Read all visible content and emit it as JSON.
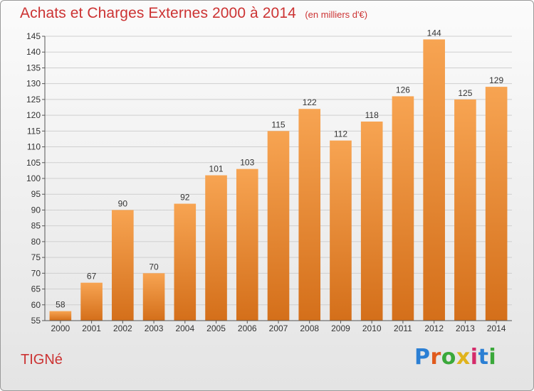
{
  "header": {
    "title": "Achats et Charges Externes 2000 à 2014",
    "subtitle": "(en milliers d'€)"
  },
  "footer": {
    "commune": "TIGNé",
    "logo_text": "Proxiti"
  },
  "colors": {
    "title": "#cc3333",
    "bar_top": "#f7a452",
    "bar_bottom": "#d46f1a",
    "grid": "#cfcfcf"
  },
  "chart_data": {
    "type": "bar",
    "title": "Achats et Charges Externes 2000 à 2014",
    "xlabel": "",
    "ylabel": "",
    "categories": [
      "2000",
      "2001",
      "2002",
      "2003",
      "2004",
      "2005",
      "2006",
      "2007",
      "2008",
      "2009",
      "2010",
      "2011",
      "2012",
      "2013",
      "2014"
    ],
    "values": [
      58,
      67,
      90,
      70,
      92,
      101,
      103,
      115,
      122,
      112,
      118,
      126,
      144,
      125,
      129
    ],
    "ylim": [
      55,
      145
    ],
    "yticks": [
      55,
      60,
      65,
      70,
      75,
      80,
      85,
      90,
      95,
      100,
      105,
      110,
      115,
      120,
      125,
      130,
      135,
      140,
      145
    ],
    "grid": true
  }
}
